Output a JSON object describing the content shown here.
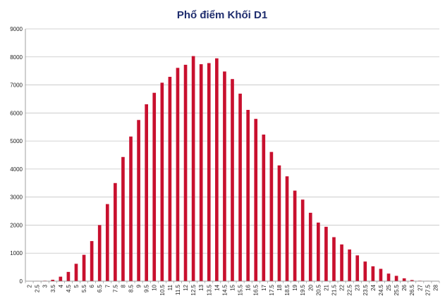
{
  "chart_data": {
    "type": "bar",
    "title": "Phổ điểm Khối D1",
    "xlabel": "",
    "ylabel": "",
    "ylim": [
      0,
      9000
    ],
    "yticks": [
      0,
      1000,
      2000,
      3000,
      4000,
      5000,
      6000,
      7000,
      8000,
      9000
    ],
    "grid": "horizontal",
    "legend": "none",
    "bar_color": "#c8102e",
    "categories": [
      "2",
      "2.5",
      "3",
      "3.5",
      "4",
      "4.5",
      "5",
      "5.5",
      "6",
      "6.5",
      "7",
      "7.5",
      "8",
      "8.5",
      "9",
      "9.5",
      "10",
      "10.5",
      "11",
      "11.5",
      "12",
      "12.5",
      "13",
      "13.5",
      "14",
      "14.5",
      "15",
      "15.5",
      "16",
      "16.5",
      "17",
      "17.5",
      "18",
      "18.5",
      "19",
      "19.5",
      "20",
      "20.5",
      "21",
      "21.5",
      "22",
      "22.5",
      "23",
      "23.5",
      "24",
      "24.5",
      "25",
      "25.5",
      "26",
      "26.5",
      "27",
      "27.5",
      "28"
    ],
    "values": [
      2,
      5,
      15,
      50,
      160,
      330,
      620,
      940,
      1430,
      2000,
      2750,
      3500,
      4430,
      5160,
      5750,
      6310,
      6720,
      7080,
      7290,
      7610,
      7720,
      8030,
      7740,
      7780,
      7950,
      7480,
      7210,
      6690,
      6110,
      5790,
      5230,
      4610,
      4130,
      3740,
      3230,
      2910,
      2440,
      2090,
      1940,
      1570,
      1310,
      1130,
      920,
      700,
      530,
      440,
      270,
      190,
      100,
      40,
      15,
      5,
      0
    ]
  }
}
